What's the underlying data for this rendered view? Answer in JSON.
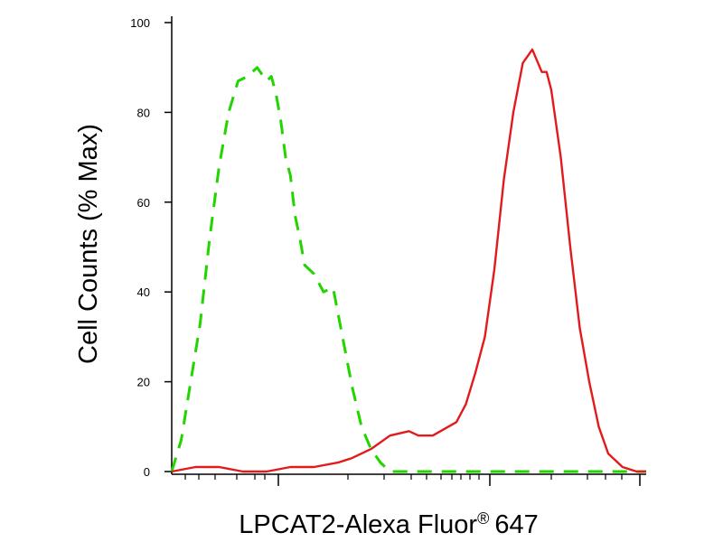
{
  "chart_data": {
    "type": "line",
    "xlabel": "LPCAT2-Alexa Fluor",
    "xlabel_superscript": "®",
    "xlabel_suffix": "647",
    "ylabel": "Cell Counts (% Max)",
    "ylim": [
      0,
      100
    ],
    "yticks": [
      0,
      20,
      40,
      60,
      80,
      100
    ],
    "xscale": "log",
    "xrange": [
      0,
      1
    ],
    "grid": false,
    "series": [
      {
        "color": "#22d400",
        "style": "dashed",
        "x": [
          0.0,
          0.02,
          0.04,
          0.06,
          0.08,
          0.1,
          0.12,
          0.14,
          0.16,
          0.18,
          0.2,
          0.21,
          0.22,
          0.23,
          0.24,
          0.25,
          0.26,
          0.27,
          0.28,
          0.3,
          0.32,
          0.34,
          0.36,
          0.38,
          0.4,
          0.42,
          0.44,
          0.46,
          0.48,
          0.5,
          0.55,
          0.6,
          0.7,
          0.8,
          0.9,
          1.0
        ],
        "y": [
          0,
          7,
          20,
          33,
          52,
          68,
          80,
          87,
          88,
          90,
          87,
          88,
          84,
          78,
          70,
          66,
          57,
          52,
          46,
          44,
          40,
          41,
          30,
          19,
          10,
          5,
          2,
          0,
          0,
          0,
          0,
          0,
          0,
          0,
          0,
          0
        ]
      },
      {
        "color": "#e31a1c",
        "style": "solid",
        "x": [
          0.0,
          0.05,
          0.1,
          0.15,
          0.2,
          0.25,
          0.3,
          0.35,
          0.38,
          0.42,
          0.46,
          0.5,
          0.52,
          0.55,
          0.6,
          0.62,
          0.64,
          0.66,
          0.68,
          0.7,
          0.72,
          0.74,
          0.76,
          0.78,
          0.79,
          0.8,
          0.82,
          0.84,
          0.86,
          0.88,
          0.9,
          0.92,
          0.95,
          0.98,
          1.0
        ],
        "y": [
          0,
          1,
          1,
          0,
          0,
          1,
          1,
          2,
          3,
          5,
          8,
          9,
          8,
          8,
          11,
          15,
          22,
          30,
          45,
          65,
          80,
          91,
          94,
          89,
          89,
          85,
          70,
          50,
          32,
          20,
          10,
          4,
          1,
          0,
          0
        ]
      }
    ]
  }
}
